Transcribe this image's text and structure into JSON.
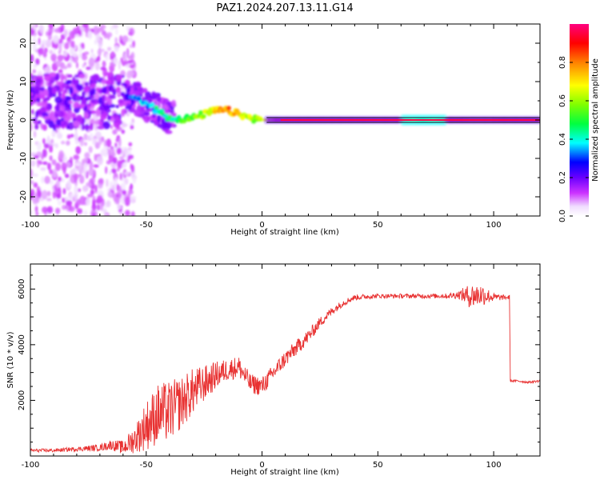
{
  "title": "PAZ1.2024.207.13.11.G14",
  "chart_data": [
    {
      "type": "heatmap",
      "xlabel": "Height of straight line (km)",
      "ylabel": "Frequency (Hz)",
      "xlim": [
        -100,
        120
      ],
      "ylim": [
        -25,
        25
      ],
      "xticks": [
        -100,
        -50,
        0,
        50,
        100
      ],
      "yticks": [
        -20,
        -10,
        0,
        10,
        20
      ],
      "colorbar": {
        "label": "Normalized spectral amplitude",
        "range": [
          0,
          1
        ],
        "ticks": [
          0.0,
          0.2,
          0.4,
          0.6,
          0.8
        ]
      },
      "ridge": {
        "note": "dominant frequency track (Hz) vs height (km)",
        "x": [
          -60,
          -55,
          -50,
          -45,
          -40,
          -35,
          -30,
          -25,
          -20,
          -15,
          -10,
          -5,
          0,
          5,
          10,
          20,
          30,
          40,
          50,
          60,
          70,
          80,
          90,
          100,
          110,
          120
        ],
        "y": [
          6,
          6,
          4,
          2.5,
          0.5,
          0.3,
          0.5,
          1.5,
          2.5,
          2.5,
          1.5,
          0.5,
          0,
          0,
          0,
          0,
          0,
          0,
          0,
          0,
          0,
          0,
          0,
          0,
          0,
          0
        ],
        "amplitude": [
          0.15,
          0.3,
          0.35,
          0.4,
          0.45,
          0.5,
          0.55,
          0.6,
          0.7,
          0.8,
          0.7,
          0.6,
          0.6,
          0.85,
          0.95,
          0.95,
          0.95,
          0.95,
          0.95,
          0.95,
          0.5,
          0.95,
          0.85,
          0.85,
          0.95,
          0.95
        ]
      }
    },
    {
      "type": "line",
      "xlabel": "Height of straight line (km)",
      "ylabel": "SNR (10 * v/v)",
      "xlim": [
        -100,
        120
      ],
      "ylim": [
        0,
        6900
      ],
      "xticks": [
        -100,
        -50,
        0,
        50,
        100
      ],
      "yticks": [
        2000,
        4000,
        6000
      ],
      "series": [
        {
          "x": [
            -100,
            -90,
            -80,
            -70,
            -65,
            -60,
            -55,
            -50,
            -45,
            -40,
            -35,
            -30,
            -25,
            -20,
            -15,
            -10,
            -5,
            0,
            5,
            10,
            15,
            20,
            25,
            30,
            35,
            40,
            50,
            60,
            70,
            80,
            85,
            90,
            95,
            100,
            105,
            106.9,
            107.1,
            110,
            115,
            120
          ],
          "y": [
            200,
            200,
            250,
            300,
            400,
            300,
            600,
            1100,
            1500,
            1600,
            1900,
            2300,
            2600,
            2900,
            3100,
            3200,
            2600,
            2500,
            3000,
            3500,
            3900,
            4300,
            4800,
            5200,
            5500,
            5700,
            5750,
            5750,
            5750,
            5750,
            5800,
            5750,
            5800,
            5700,
            5700,
            5700,
            2700,
            2700,
            2650,
            2700
          ],
          "noise": [
            60,
            60,
            80,
            120,
            180,
            250,
            500,
            900,
            1100,
            1100,
            950,
            850,
            650,
            500,
            400,
            400,
            350,
            350,
            300,
            300,
            280,
            250,
            200,
            150,
            120,
            100,
            80,
            80,
            80,
            90,
            150,
            450,
            400,
            150,
            80,
            80,
            40,
            40,
            40,
            40
          ]
        }
      ]
    }
  ]
}
